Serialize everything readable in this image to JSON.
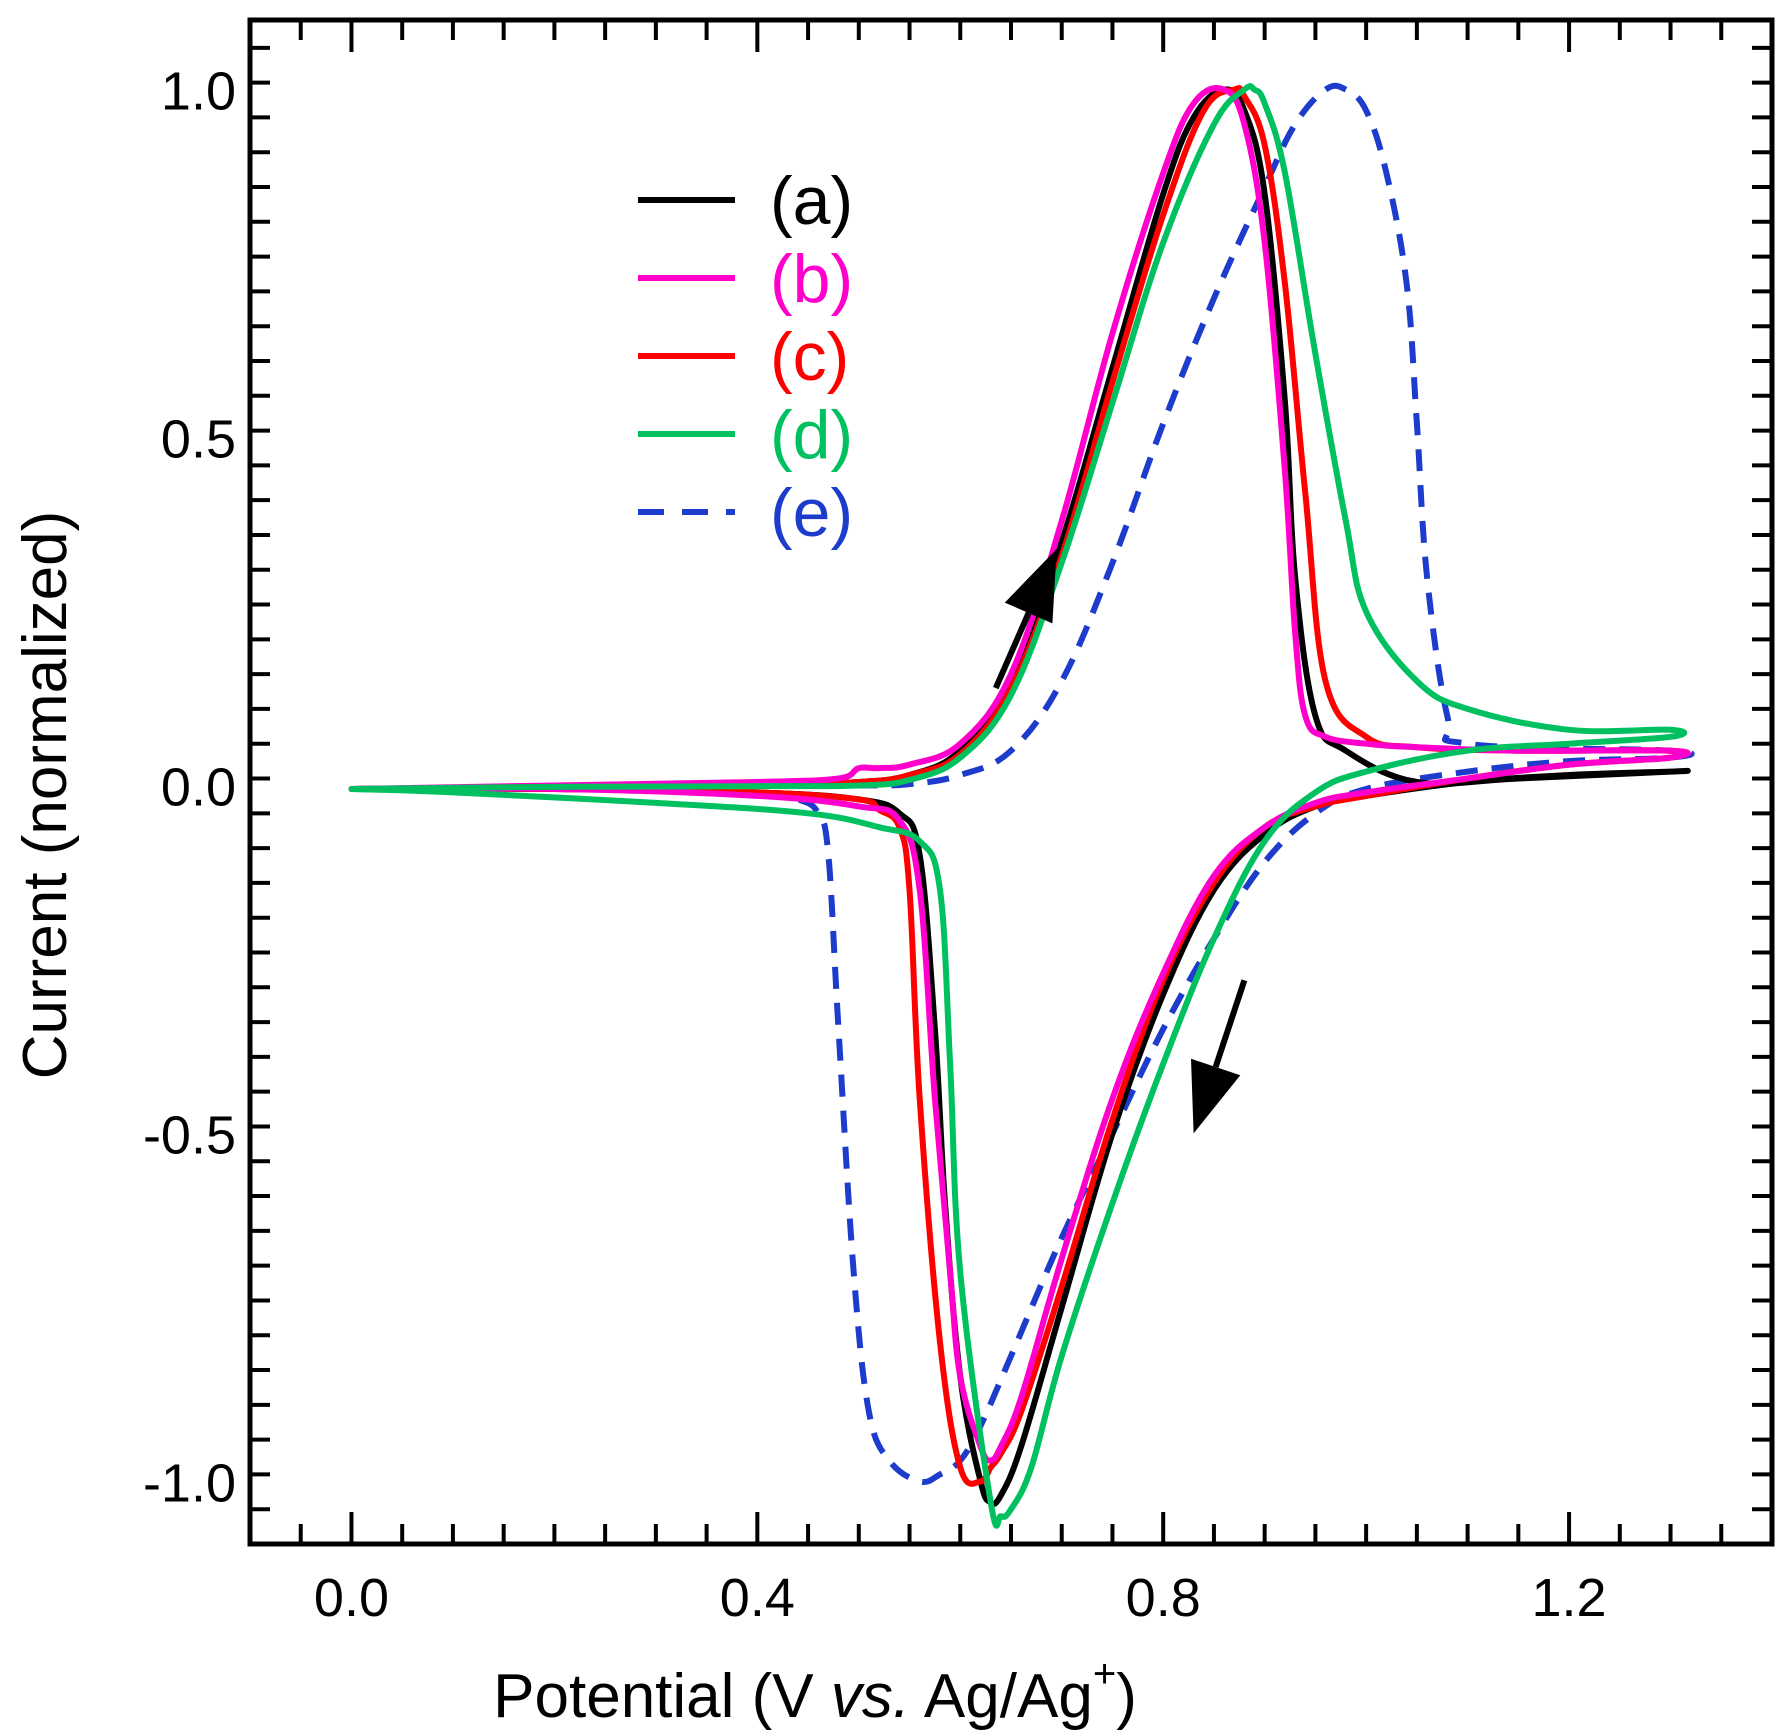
{
  "chart_data": {
    "type": "line",
    "title": "",
    "xlabel": {
      "main": "Potential (V ",
      "italic": "vs.",
      "unit": " Ag/Ag",
      "superscript": "+",
      "close": ")"
    },
    "ylabel": "Current (normalized)",
    "xlim": [
      -0.1,
      1.4
    ],
    "ylim": [
      -1.09,
      1.1
    ],
    "xticks": [
      0.0,
      0.4,
      0.8,
      1.2
    ],
    "xtick_labels": [
      "0.0",
      "0.4",
      "0.8",
      "1.2"
    ],
    "xminor_step": 0.05,
    "yticks": [
      -1.0,
      -0.5,
      0.0,
      0.5,
      1.0
    ],
    "ytick_labels": [
      "-1.0",
      "-0.5",
      "0.0",
      "0.5",
      "1.0"
    ],
    "yminor_step": 0.05,
    "grid": false,
    "legend_position": "top-left",
    "series": [
      {
        "name": "(a)",
        "color": "#000000",
        "dash": "solid",
        "x": [
          0.0,
          0.2,
          0.4,
          0.5,
          0.55,
          0.6,
          0.65,
          0.7,
          0.75,
          0.8,
          0.83,
          0.86,
          0.88,
          0.9,
          0.92,
          0.93,
          0.95,
          0.98,
          1.05,
          1.15,
          1.3,
          1.3,
          1.2,
          1.1,
          1.0,
          0.95,
          0.9,
          0.85,
          0.8,
          0.75,
          0.7,
          0.66,
          0.64,
          0.63,
          0.62,
          0.6,
          0.585,
          0.575,
          0.56,
          0.54,
          0.5,
          0.4,
          0.2,
          0.0
        ],
        "y": [
          -0.005,
          -0.003,
          0.0,
          0.005,
          0.015,
          0.05,
          0.15,
          0.35,
          0.6,
          0.85,
          0.96,
          1.0,
          0.97,
          0.85,
          0.55,
          0.3,
          0.1,
          0.05,
          0.005,
          0.01,
          0.02,
          0.02,
          0.015,
          0.005,
          -0.015,
          -0.03,
          -0.07,
          -0.15,
          -0.3,
          -0.5,
          -0.75,
          -0.95,
          -1.02,
          -1.03,
          -1.0,
          -0.85,
          -0.6,
          -0.35,
          -0.1,
          -0.04,
          -0.02,
          -0.01,
          -0.005,
          -0.005
        ]
      },
      {
        "name": "(b)",
        "color": "#ff00cc",
        "dash": "solid",
        "x": [
          0.0,
          0.2,
          0.4,
          0.48,
          0.5,
          0.52,
          0.55,
          0.6,
          0.65,
          0.7,
          0.75,
          0.8,
          0.83,
          0.86,
          0.88,
          0.9,
          0.92,
          0.93,
          0.94,
          0.96,
          1.0,
          1.05,
          1.15,
          1.3,
          1.3,
          1.2,
          1.1,
          1.0,
          0.95,
          0.9,
          0.85,
          0.8,
          0.75,
          0.7,
          0.66,
          0.64,
          0.63,
          0.62,
          0.6,
          0.59,
          0.575,
          0.56,
          0.54,
          0.5,
          0.4,
          0.2,
          0.0
        ],
        "y": [
          -0.005,
          0.0,
          0.005,
          0.01,
          0.025,
          0.025,
          0.03,
          0.06,
          0.16,
          0.38,
          0.65,
          0.88,
          0.98,
          1.0,
          0.95,
          0.78,
          0.45,
          0.22,
          0.1,
          0.07,
          0.06,
          0.055,
          0.05,
          0.05,
          0.04,
          0.03,
          0.01,
          -0.01,
          -0.025,
          -0.06,
          -0.13,
          -0.27,
          -0.45,
          -0.68,
          -0.88,
          -0.95,
          -0.97,
          -0.95,
          -0.85,
          -0.7,
          -0.45,
          -0.15,
          -0.05,
          -0.03,
          -0.015,
          -0.005,
          -0.005
        ]
      },
      {
        "name": "(c)",
        "color": "#ff0000",
        "dash": "solid",
        "x": [
          0.0,
          0.2,
          0.4,
          0.5,
          0.55,
          0.6,
          0.65,
          0.7,
          0.75,
          0.8,
          0.84,
          0.87,
          0.88,
          0.9,
          0.92,
          0.94,
          0.96,
          1.0,
          1.05,
          1.15,
          1.3,
          1.3,
          1.2,
          1.1,
          1.0,
          0.95,
          0.9,
          0.85,
          0.8,
          0.75,
          0.7,
          0.66,
          0.64,
          0.63,
          0.62,
          0.6,
          0.58,
          0.56,
          0.55,
          0.54,
          0.52,
          0.5,
          0.4,
          0.2,
          0.0
        ],
        "y": [
          -0.005,
          -0.003,
          0.0,
          0.005,
          0.015,
          0.045,
          0.14,
          0.33,
          0.58,
          0.82,
          0.97,
          1.0,
          0.99,
          0.92,
          0.72,
          0.42,
          0.15,
          0.07,
          0.055,
          0.05,
          0.05,
          0.04,
          0.03,
          0.01,
          -0.015,
          -0.03,
          -0.06,
          -0.14,
          -0.28,
          -0.48,
          -0.72,
          -0.9,
          -0.96,
          -0.98,
          -1.0,
          -0.98,
          -0.8,
          -0.45,
          -0.15,
          -0.06,
          -0.035,
          -0.02,
          -0.01,
          -0.005,
          -0.005
        ]
      },
      {
        "name": "(d)",
        "color": "#00c060",
        "dash": "solid",
        "x": [
          0.0,
          0.2,
          0.4,
          0.5,
          0.55,
          0.6,
          0.65,
          0.7,
          0.75,
          0.8,
          0.85,
          0.88,
          0.89,
          0.9,
          0.92,
          0.95,
          0.98,
          1.0,
          1.05,
          1.1,
          1.2,
          1.3,
          1.3,
          1.2,
          1.1,
          1.0,
          0.95,
          0.9,
          0.85,
          0.8,
          0.75,
          0.7,
          0.67,
          0.65,
          0.64,
          0.63,
          0.6,
          0.59,
          0.58,
          0.56,
          0.52,
          0.45,
          0.3,
          0.1,
          0.0
        ],
        "y": [
          -0.005,
          -0.002,
          -0.001,
          0.0,
          0.008,
          0.04,
          0.13,
          0.32,
          0.55,
          0.78,
          0.95,
          1.0,
          1.0,
          0.98,
          0.88,
          0.62,
          0.38,
          0.25,
          0.15,
          0.11,
          0.08,
          0.08,
          0.07,
          0.06,
          0.05,
          0.02,
          -0.01,
          -0.08,
          -0.22,
          -0.4,
          -0.6,
          -0.82,
          -0.98,
          -1.04,
          -1.05,
          -1.03,
          -0.7,
          -0.4,
          -0.15,
          -0.08,
          -0.06,
          -0.04,
          -0.025,
          -0.01,
          -0.005
        ]
      },
      {
        "name": "(e)",
        "color": "#1e3ccc",
        "dash": "dashed",
        "x": [
          0.0,
          0.2,
          0.4,
          0.5,
          0.55,
          0.6,
          0.65,
          0.7,
          0.75,
          0.8,
          0.85,
          0.9,
          0.93,
          0.96,
          0.98,
          1.0,
          1.02,
          1.04,
          1.05,
          1.06,
          1.08,
          1.1,
          1.3,
          1.3,
          1.2,
          1.1,
          1.0,
          0.95,
          0.9,
          0.85,
          0.8,
          0.75,
          0.7,
          0.65,
          0.62,
          0.6,
          0.58,
          0.56,
          0.53,
          0.51,
          0.495,
          0.48,
          0.47,
          0.46,
          0.44,
          0.4,
          0.2,
          0.0
        ],
        "y": [
          -0.005,
          -0.002,
          0.0,
          0.0,
          0.002,
          0.015,
          0.05,
          0.15,
          0.32,
          0.52,
          0.7,
          0.86,
          0.95,
          1.0,
          1.0,
          0.97,
          0.88,
          0.72,
          0.52,
          0.3,
          0.1,
          0.06,
          0.05,
          0.04,
          0.035,
          0.02,
          -0.005,
          -0.04,
          -0.11,
          -0.22,
          -0.35,
          -0.5,
          -0.65,
          -0.82,
          -0.92,
          -0.97,
          -0.99,
          -1.0,
          -0.97,
          -0.9,
          -0.7,
          -0.35,
          -0.1,
          -0.04,
          -0.02,
          -0.01,
          -0.005,
          -0.005
        ]
      }
    ],
    "annotations": [
      {
        "type": "arrow",
        "meaning": "anodic scan direction",
        "from": [
          0.635,
          0.14
        ],
        "to": [
          0.695,
          0.34
        ]
      },
      {
        "type": "arrow",
        "meaning": "cathodic scan direction",
        "from": [
          0.88,
          -0.28
        ],
        "to": [
          0.83,
          -0.5
        ]
      }
    ]
  }
}
